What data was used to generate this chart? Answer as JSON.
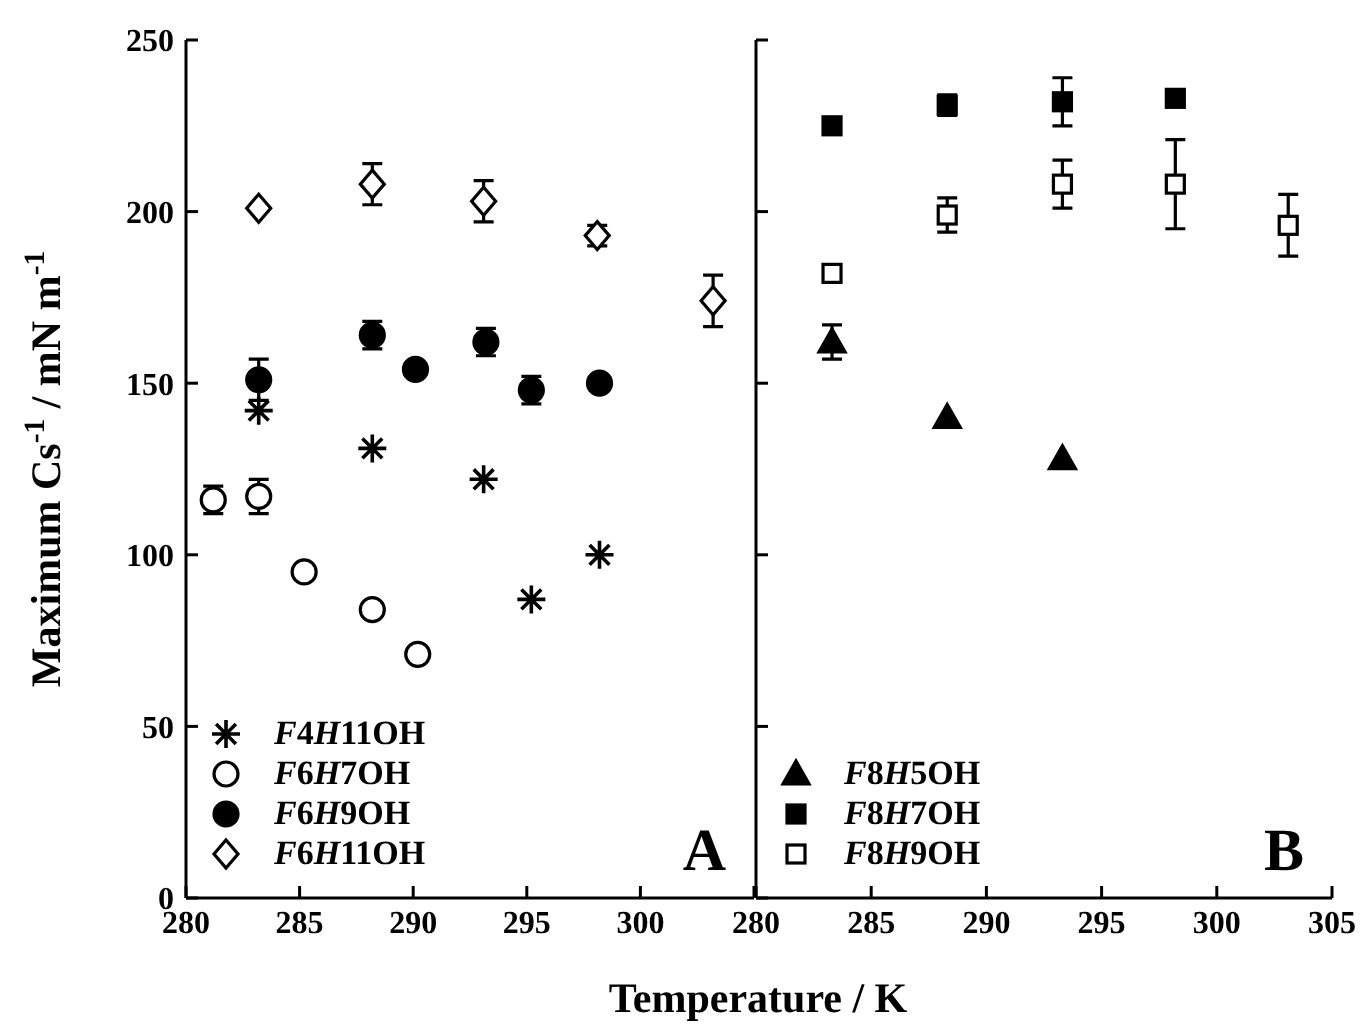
{
  "chart_data": [
    {
      "type": "scatter",
      "xlabel": "Temperature / K",
      "ylabel": "Maximum Cs$^{-1}$ / mN m$^{-1}$",
      "xlim": [
        280,
        305
      ],
      "xticks": [
        280,
        285,
        290,
        295,
        300,
        {
          "value": 305,
          "label": null
        }
      ],
      "ylim": [
        0,
        250
      ],
      "yticks": [
        0,
        50,
        100,
        150,
        200,
        250
      ],
      "legend": "bottom left",
      "annotations": [
        "A"
      ],
      "series": [
        {
          "name": "F4H11OH",
          "color": "#000000",
          "marker": "cross",
          "x": [
            283.2,
            288.2,
            293.1,
            295.2,
            298.2
          ],
          "values": [
            142,
            131,
            122,
            87,
            100
          ],
          "errors": [
            null,
            null,
            null,
            null,
            null
          ]
        },
        {
          "name": "F6H7OH",
          "color": "#ffffff",
          "marker": "circle",
          "x": [
            281.2,
            283.2,
            285.2,
            288.2,
            290.2
          ],
          "values": [
            116,
            117,
            95,
            84,
            71
          ],
          "errors": [
            4,
            5,
            null,
            null,
            null
          ]
        },
        {
          "name": "F6H9OH",
          "color": "#000000",
          "marker": "circle",
          "x": [
            283.2,
            288.2,
            290.1,
            293.2,
            295.2,
            298.2
          ],
          "values": [
            151,
            164,
            154,
            162,
            148,
            150
          ],
          "errors": [
            6,
            4,
            null,
            4,
            4,
            null
          ]
        },
        {
          "name": "F6H11OH",
          "color": "#ffffff",
          "marker": "diamond",
          "x": [
            283.2,
            288.2,
            293.1,
            298.1,
            303.2
          ],
          "values": [
            201,
            208,
            203,
            193,
            174
          ],
          "errors": [
            null,
            6,
            6,
            3,
            7.5
          ]
        }
      ]
    },
    {
      "type": "scatter",
      "xlim": [
        280,
        305
      ],
      "xticks": [
        280,
        285,
        290,
        295,
        300,
        305
      ],
      "ylim": [
        0,
        250
      ],
      "yticks": [
        0,
        50,
        100,
        150,
        200,
        250
      ],
      "tick_labels": "x",
      "legend": "bottom left",
      "annotations": [
        "B"
      ],
      "series": [
        {
          "name": "F8H5OH",
          "color": "#000000",
          "marker": "triangle",
          "x": [
            283.3,
            288.3,
            293.3
          ],
          "values": [
            162,
            140,
            128
          ],
          "errors": [
            5,
            null,
            null
          ]
        },
        {
          "name": "F8H7OH",
          "color": "#000000",
          "marker": "square",
          "x": [
            283.3,
            288.3,
            293.3,
            298.2
          ],
          "values": [
            225,
            231,
            232,
            233
          ],
          "errors": [
            null,
            3,
            7,
            null
          ]
        },
        {
          "name": "F8H9OH",
          "color": "#ffffff",
          "marker": "square",
          "x": [
            283.3,
            288.3,
            293.3,
            298.2,
            303.1
          ],
          "values": [
            182,
            199,
            208,
            208,
            196
          ],
          "errors": [
            null,
            5,
            7,
            13,
            9
          ]
        }
      ]
    }
  ]
}
